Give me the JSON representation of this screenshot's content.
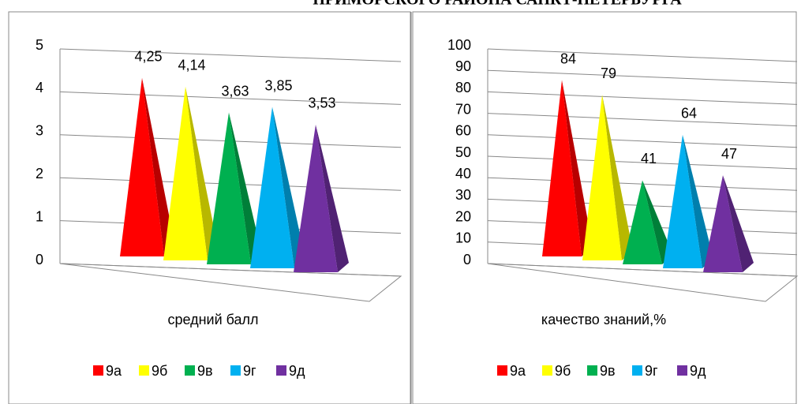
{
  "page_title": "ПРИМОРСКОГО РАЙОНА САНКТ-ПЕТЕРБУРГА",
  "chart_data": [
    {
      "type": "pyramid",
      "categories": [
        "средний балл"
      ],
      "series": [
        {
          "name": "9а",
          "color": "#ff0000",
          "values": [
            4.25
          ],
          "value_labels": [
            "4,25"
          ]
        },
        {
          "name": "9б",
          "color": "#ffff00",
          "values": [
            4.14
          ],
          "value_labels": [
            "4,14"
          ]
        },
        {
          "name": "9в",
          "color": "#00b050",
          "values": [
            3.63
          ],
          "value_labels": [
            "3,63"
          ]
        },
        {
          "name": "9г",
          "color": "#00b0f0",
          "values": [
            3.85
          ],
          "value_labels": [
            "3,85"
          ]
        },
        {
          "name": "9д",
          "color": "#7030a0",
          "values": [
            3.53
          ],
          "value_labels": [
            "3,53"
          ]
        }
      ],
      "ylim": [
        0,
        5
      ],
      "yticks": [
        0,
        1,
        2,
        3,
        4,
        5
      ],
      "grid": true,
      "legend": "bottom"
    },
    {
      "type": "pyramid",
      "categories": [
        "качество знаний,%"
      ],
      "series": [
        {
          "name": "9а",
          "color": "#ff0000",
          "values": [
            84
          ]
        },
        {
          "name": "9б",
          "color": "#ffff00",
          "values": [
            79
          ]
        },
        {
          "name": "9в",
          "color": "#00b050",
          "values": [
            41
          ]
        },
        {
          "name": "9г",
          "color": "#00b0f0",
          "values": [
            64
          ]
        },
        {
          "name": "9д",
          "color": "#7030a0",
          "values": [
            47
          ]
        }
      ],
      "ylim": [
        0,
        100
      ],
      "yticks": [
        0,
        10,
        20,
        30,
        40,
        50,
        60,
        70,
        80,
        90,
        100
      ],
      "grid": true,
      "legend": "bottom"
    }
  ]
}
